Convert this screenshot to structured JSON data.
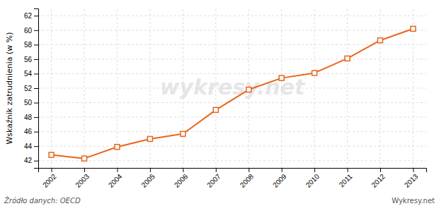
{
  "chart_data": {
    "type": "line",
    "x": [
      2002,
      2003,
      2004,
      2005,
      2006,
      2007,
      2008,
      2009,
      2010,
      2011,
      2012,
      2013
    ],
    "values": [
      42.8,
      42.3,
      43.9,
      45.0,
      45.7,
      49.0,
      51.8,
      53.4,
      54.1,
      56.1,
      58.6,
      60.2
    ],
    "ylabel": "Wskaźnik zatrudnienia (w %)",
    "color": "#e8651a",
    "marker": "square",
    "xlim": [
      2001.6,
      2013.4
    ],
    "xticks": [
      2002,
      2003,
      2004,
      2005,
      2006,
      2007,
      2008,
      2009,
      2010,
      2011,
      2012,
      2013
    ],
    "ylim": [
      41,
      63
    ],
    "yticks": [
      42,
      44,
      46,
      48,
      50,
      52,
      54,
      56,
      58,
      60,
      62
    ],
    "grid": true,
    "annotations": [
      "wykresy.net",
      "Źródło danych:  OECD",
      "Wykresy.net"
    ]
  }
}
